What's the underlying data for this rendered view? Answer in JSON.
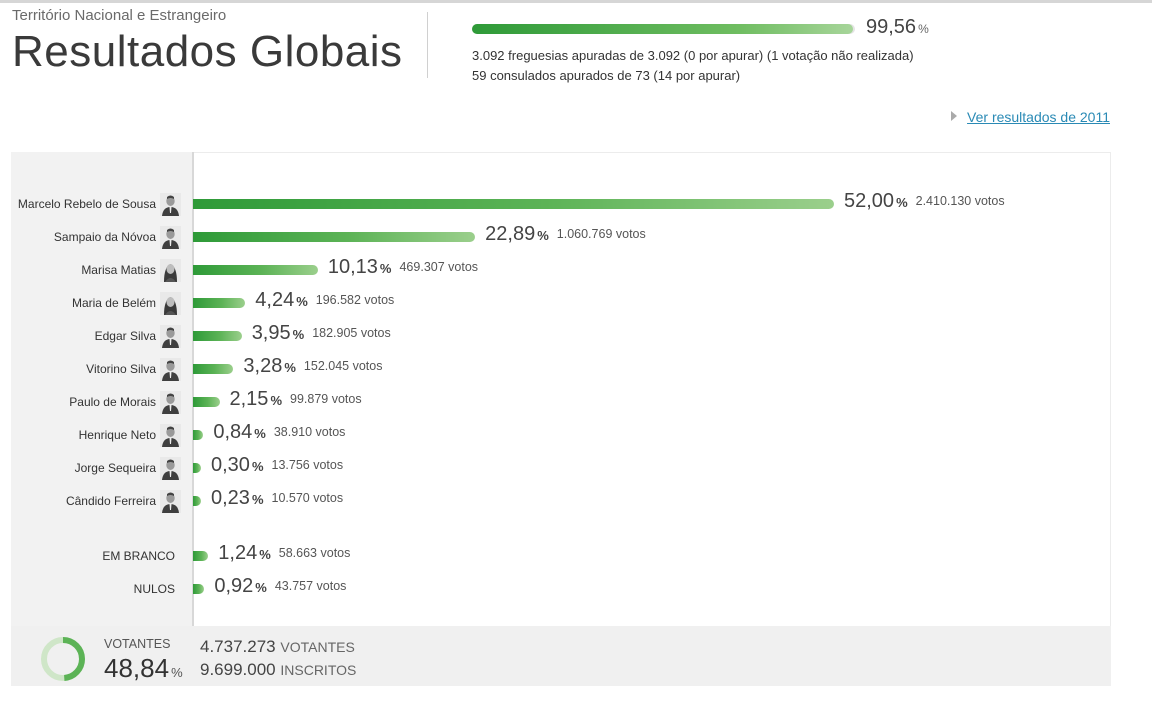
{
  "header": {
    "subtitle": "Território Nacional e Estrangeiro",
    "title": "Resultados Globais"
  },
  "progress": {
    "value": "99,56",
    "unit": "%",
    "fraction": 0.9956,
    "line1": "3.092 freguesias apuradas de 3.092 (0 por apurar)  (1 votação não realizada)",
    "line2": "59 consulados apurados de 73 (14 por apurar)"
  },
  "previous_results_link": "Ver resultados de 2011",
  "pct_unit": "%",
  "candidates": [
    {
      "name": "Marcelo Rebelo de Sousa",
      "pct": "52,00",
      "pct_value": 52.0,
      "votes": "2.410.130 votos",
      "avatar": "man-portrait-icon"
    },
    {
      "name": "Sampaio da Nóvoa",
      "pct": "22,89",
      "pct_value": 22.89,
      "votes": "1.060.769 votos",
      "avatar": "man-portrait-icon"
    },
    {
      "name": "Marisa Matias",
      "pct": "10,13",
      "pct_value": 10.13,
      "votes": "469.307 votos",
      "avatar": "woman-portrait-icon"
    },
    {
      "name": "Maria de Belém",
      "pct": "4,24",
      "pct_value": 4.24,
      "votes": "196.582 votos",
      "avatar": "woman-portrait-icon"
    },
    {
      "name": "Edgar Silva",
      "pct": "3,95",
      "pct_value": 3.95,
      "votes": "182.905 votos",
      "avatar": "man-portrait-icon"
    },
    {
      "name": "Vitorino Silva",
      "pct": "3,28",
      "pct_value": 3.28,
      "votes": "152.045 votos",
      "avatar": "man-portrait-icon"
    },
    {
      "name": "Paulo de Morais",
      "pct": "2,15",
      "pct_value": 2.15,
      "votes": "99.879 votos",
      "avatar": "man-portrait-icon"
    },
    {
      "name": "Henrique Neto",
      "pct": "0,84",
      "pct_value": 0.84,
      "votes": "38.910 votos",
      "avatar": "man-portrait-icon"
    },
    {
      "name": "Jorge Sequeira",
      "pct": "0,30",
      "pct_value": 0.3,
      "votes": "13.756 votos",
      "avatar": "man-portrait-icon"
    },
    {
      "name": "Cândido Ferreira",
      "pct": "0,23",
      "pct_value": 0.23,
      "votes": "10.570 votos",
      "avatar": "man-portrait-icon"
    }
  ],
  "others": [
    {
      "name": "EM BRANCO",
      "pct": "1,24",
      "pct_value": 1.24,
      "votes": "58.663 votos"
    },
    {
      "name": "NULOS",
      "pct": "0,92",
      "pct_value": 0.92,
      "votes": "43.757 votos"
    }
  ],
  "footer": {
    "voters_label": "VOTANTES",
    "voters_pct": "48,84",
    "voters_fraction": 0.4884,
    "voters_count": "4.737.273",
    "voters_count_label": "VOTANTES",
    "registered_count": "9.699.000",
    "registered_label": "INSCRITOS"
  },
  "colors": {
    "bar_dark": "#2e9a38",
    "bar_light": "#9bcf8c",
    "link": "#2a8ab5"
  }
}
